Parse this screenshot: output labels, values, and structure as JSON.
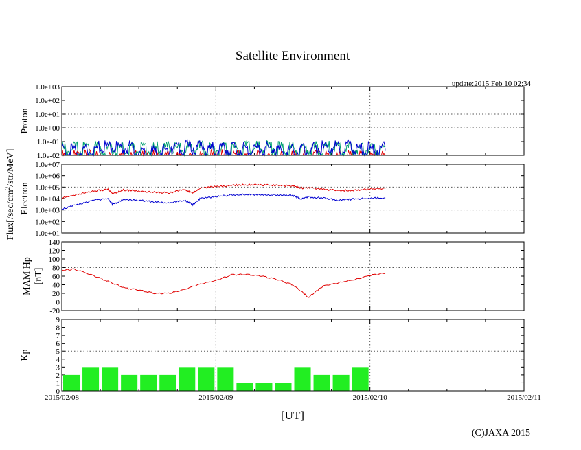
{
  "title": "Satellite Environment",
  "update": "update:2015 Feb 10 02:34",
  "copyright": "(C)JAXA 2015",
  "colors": {
    "red": "#e00000",
    "blue": "#0000d0",
    "green": "#00a070",
    "bar": "#22ee22"
  },
  "chart_data": [
    {
      "type": "line",
      "name": "proton",
      "ylabel": "Proton",
      "yscale": "log",
      "ylim": [
        0.01,
        1000
      ],
      "yticks": [
        "1.0e-02",
        "1.0e-01",
        "1.0e+00",
        "1.0e+01",
        "1.0e+02",
        "1.0e+03"
      ],
      "series": [
        {
          "name": "proton-red",
          "values": [
            0.013,
            0.011,
            0.012,
            0.01,
            0.014,
            0.011,
            0.012,
            0.013,
            0.011,
            0.012
          ]
        },
        {
          "name": "proton-green",
          "values": [
            0.05,
            0.06,
            0.055,
            0.06,
            0.05,
            0.065,
            0.055,
            0.06,
            0.05,
            0.06
          ]
        },
        {
          "name": "proton-blue",
          "values": [
            0.04,
            0.07,
            0.03,
            0.08,
            0.05,
            0.06,
            0.04,
            0.07,
            0.05,
            0.06
          ]
        }
      ],
      "x": [
        0.0,
        0.23,
        0.46,
        0.69,
        0.92,
        1.15,
        1.38,
        1.61,
        1.84,
        2.1
      ]
    },
    {
      "type": "line",
      "name": "electron",
      "ylabel": "Electron",
      "yscale": "log",
      "ylim": [
        10,
        10000000
      ],
      "yticks": [
        "1.0e+01",
        "1.0e+02",
        "1.0e+03",
        "1.0e+04",
        "1.0e+05",
        "1.0e+06",
        "1.0e+07"
      ],
      "x": [
        0.0,
        0.1,
        0.2,
        0.3,
        0.33,
        0.4,
        0.5,
        0.6,
        0.7,
        0.8,
        0.85,
        0.9,
        1.0,
        1.1,
        1.2,
        1.3,
        1.4,
        1.5,
        1.55,
        1.6,
        1.7,
        1.8,
        1.9,
        2.0,
        2.1
      ],
      "series": [
        {
          "name": "electron-red",
          "values": [
            12000,
            22000,
            45000,
            60000,
            28000,
            55000,
            45000,
            35000,
            32000,
            60000,
            30000,
            80000,
            110000,
            140000,
            160000,
            150000,
            140000,
            130000,
            80000,
            90000,
            65000,
            50000,
            55000,
            70000,
            75000
          ]
        },
        {
          "name": "electron-blue",
          "values": [
            1200,
            3000,
            7000,
            10000,
            3000,
            8000,
            7000,
            5000,
            4000,
            7000,
            3000,
            10000,
            15000,
            20000,
            22000,
            21000,
            20000,
            19000,
            9000,
            14000,
            11000,
            7000,
            9000,
            10500,
            11000
          ]
        }
      ]
    },
    {
      "type": "line",
      "name": "magnetic-field",
      "ylabel": "MAM Hp",
      "ylabel2": "[nT]",
      "ylim": [
        -20,
        140
      ],
      "yticks": [
        "-20",
        "0",
        "20",
        "40",
        "60",
        "80",
        "100",
        "120",
        "140"
      ],
      "x": [
        0.0,
        0.08,
        0.2,
        0.3,
        0.4,
        0.5,
        0.6,
        0.7,
        0.8,
        0.9,
        1.0,
        1.1,
        1.2,
        1.3,
        1.4,
        1.5,
        1.57,
        1.6,
        1.65,
        1.7,
        1.8,
        1.9,
        2.0,
        2.1
      ],
      "series": [
        {
          "name": "hp-red",
          "values": [
            74,
            76,
            62,
            48,
            33,
            28,
            20,
            20,
            30,
            42,
            50,
            63,
            64,
            60,
            52,
            40,
            20,
            10,
            25,
            38,
            45,
            52,
            62,
            67
          ]
        }
      ]
    },
    {
      "type": "bar",
      "name": "kp",
      "ylabel": "Kp",
      "ylim": [
        0,
        9
      ],
      "yticks": [
        "0",
        "1",
        "2",
        "3",
        "4",
        "5",
        "6",
        "7",
        "8",
        "9"
      ],
      "values": [
        2,
        3,
        3,
        2,
        2,
        2,
        3,
        3,
        3,
        1,
        1,
        1,
        3,
        2,
        2,
        3
      ]
    }
  ],
  "xaxis": {
    "label": "[UT]",
    "ticks": [
      "2015/02/08",
      "2015/02/09",
      "2015/02/10",
      "2015/02/11"
    ],
    "range": [
      0,
      3
    ]
  },
  "ylabel_shared": "Flux[/sec/cm",
  "ylabel_sup": "2",
  "ylabel_shared_tail": "/str/MeV]"
}
